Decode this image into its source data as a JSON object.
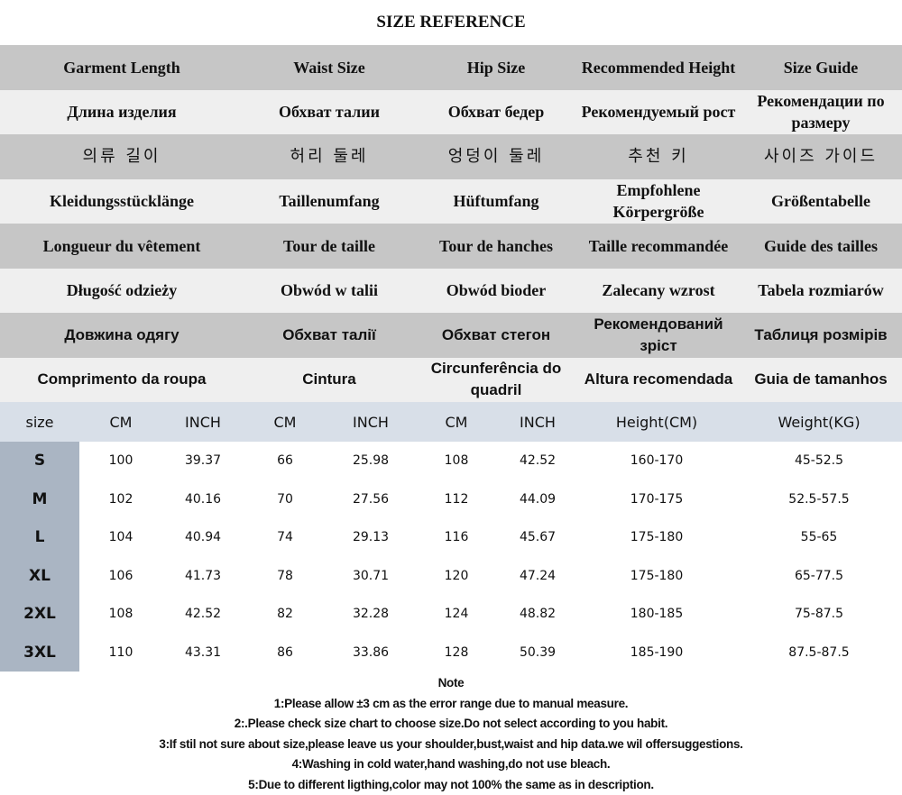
{
  "title": "SIZE REFERENCE",
  "header_rows": [
    [
      "Garment Length",
      "Waist Size",
      "Hip Size",
      "Recommended Height",
      "Size Guide"
    ],
    [
      "Длина изделия",
      "Обхват талии",
      "Обхват бедер",
      "Рекомендуемый рост",
      "Рекомендации по размеру"
    ],
    [
      "의류 길이",
      "허리 둘레",
      "엉덩이 둘레",
      "추천 키",
      "사이즈 가이드"
    ],
    [
      "Kleidungsstücklänge",
      "Taillenumfang",
      "Hüftumfang",
      "Empfohlene Körpergröße",
      "Größentabelle"
    ],
    [
      "Longueur du vêtement",
      "Tour de taille",
      "Tour de hanches",
      "Taille recommandée",
      "Guide des tailles"
    ],
    [
      "Długość odzieży",
      "Obwód w talii",
      "Obwód bioder",
      "Zalecany wzrost",
      "Tabela rozmiarów"
    ],
    [
      "Довжина одягу",
      "Обхват талії",
      "Обхват стегон",
      "Рекомендований зріст",
      "Таблиця розмірів"
    ],
    [
      "Comprimento da roupa",
      "Cintura",
      "Circunferência do quadril",
      "Altura recomendada",
      "Guia de tamanhos"
    ]
  ],
  "columns": [
    "size",
    "CM",
    "INCH",
    "CM",
    "INCH",
    "CM",
    "INCH",
    "Height(CM)",
    "Weight(KG)"
  ],
  "rows": [
    [
      "S",
      "100",
      "39.37",
      "66",
      "25.98",
      "108",
      "42.52",
      "160-170",
      "45-52.5"
    ],
    [
      "M",
      "102",
      "40.16",
      "70",
      "27.56",
      "112",
      "44.09",
      "170-175",
      "52.5-57.5"
    ],
    [
      "L",
      "104",
      "40.94",
      "74",
      "29.13",
      "116",
      "45.67",
      "175-180",
      "55-65"
    ],
    [
      "XL",
      "106",
      "41.73",
      "78",
      "30.71",
      "120",
      "47.24",
      "175-180",
      "65-77.5"
    ],
    [
      "2XL",
      "108",
      "42.52",
      "82",
      "32.28",
      "124",
      "48.82",
      "180-185",
      "75-87.5"
    ],
    [
      "3XL",
      "110",
      "43.31",
      "86",
      "33.86",
      "128",
      "50.39",
      "185-190",
      "87.5-87.5"
    ]
  ],
  "notes": {
    "heading": "Note",
    "items": [
      "1:Please allow ±3 cm as the error range due to manual measure.",
      "2:.Please check size chart to choose size.Do not select according to you habit.",
      "3:If stil not sure about size,please leave us your shoulder,bust,waist and hip data.we wil offersuggestions.",
      "4:Washing in cold water,hand washing,do not use bleach.",
      "5:Due to different ligthing,color may not 100% the same as in description."
    ]
  }
}
